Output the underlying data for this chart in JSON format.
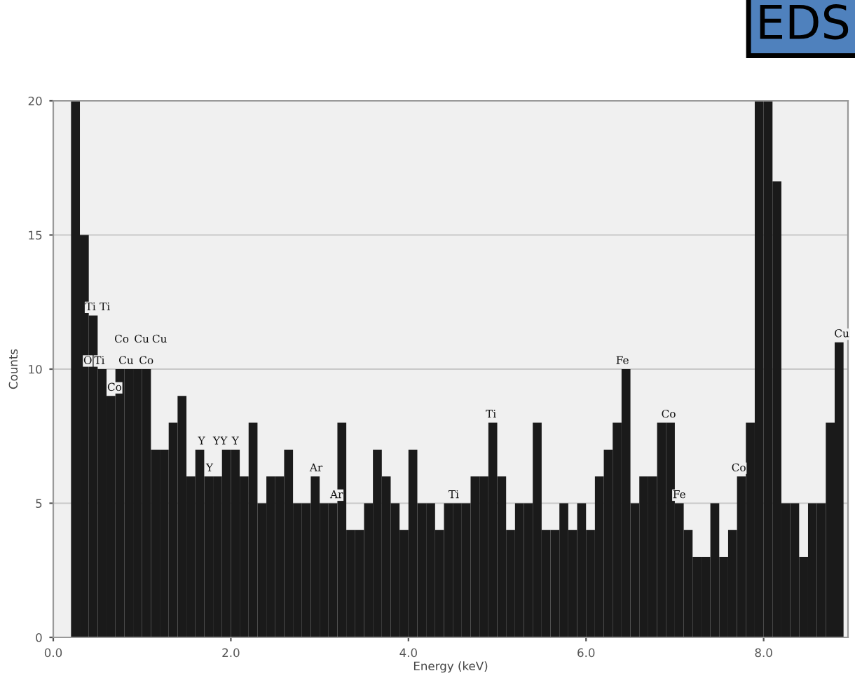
{
  "chart_data": {
    "type": "histogram",
    "xlabel": "Energy (keV)",
    "ylabel": "Counts",
    "bins": [
      0.2,
      0.3,
      0.4,
      0.5,
      0.6,
      0.7,
      0.8,
      0.9,
      1.0,
      1.1,
      1.2,
      1.3,
      1.4,
      1.5,
      1.6,
      1.7,
      1.8,
      1.9,
      2.0,
      2.1,
      2.2,
      2.3,
      2.4,
      2.5,
      2.6,
      2.7,
      2.8,
      2.9,
      3.0,
      3.1,
      3.2,
      3.3,
      3.4,
      3.5,
      3.6,
      3.7,
      3.8,
      3.9,
      4.0,
      4.1,
      4.2,
      4.3,
      4.4,
      4.5,
      4.6,
      4.7,
      4.8,
      4.9,
      5.0,
      5.1,
      5.2,
      5.3,
      5.4,
      5.5,
      5.6,
      5.7,
      5.8,
      5.9,
      6.0,
      6.1,
      6.2,
      6.3,
      6.4,
      6.5,
      6.6,
      6.7,
      6.8,
      6.9,
      7.0,
      7.1,
      7.2,
      7.3,
      7.4,
      7.5,
      7.6,
      7.7,
      7.8,
      7.9,
      8.0,
      8.1,
      8.2,
      8.3,
      8.4,
      8.5,
      8.6,
      8.7,
      8.8,
      8.9
    ],
    "values": [
      20,
      15,
      12,
      10,
      9,
      10,
      10,
      10,
      10,
      7,
      7,
      8,
      9,
      6,
      7,
      6,
      6,
      7,
      7,
      6,
      8,
      5,
      6,
      6,
      7,
      5,
      5,
      6,
      5,
      5,
      8,
      4,
      4,
      5,
      7,
      6,
      5,
      4,
      7,
      5,
      5,
      4,
      5,
      5,
      5,
      6,
      6,
      8,
      6,
      4,
      5,
      5,
      8,
      4,
      4,
      5,
      4,
      5,
      4,
      6,
      7,
      8,
      10,
      5,
      6,
      6,
      8,
      8,
      5,
      4,
      3,
      3,
      5,
      3,
      4,
      6,
      8,
      20,
      20,
      17,
      5,
      5,
      3,
      5,
      5,
      8,
      11
    ],
    "color": "#1a1a1a",
    "xlim": [
      0,
      8.95
    ],
    "xticks": [
      {
        "value": 0,
        "label": "0.0"
      },
      {
        "value": 2,
        "label": "2.0"
      },
      {
        "value": 4,
        "label": "4.0"
      },
      {
        "value": 6,
        "label": "6.0"
      },
      {
        "value": 8,
        "label": "8.0"
      }
    ],
    "ylim": [
      0,
      20
    ],
    "yticks": [
      0,
      5,
      10,
      15,
      20
    ],
    "grid": "y",
    "annotations": [
      "EDS",
      {
        "text": "Ti",
        "x": 0.42,
        "y": 12
      },
      {
        "text": "Ti",
        "x": 0.45,
        "y": 12
      },
      {
        "text": "Cu",
        "x": 0.82,
        "y": 10
      },
      {
        "text": "Ti",
        "x": 0.52,
        "y": 10
      },
      {
        "text": "O",
        "x": 0.52,
        "y": 10
      },
      {
        "text": "Co",
        "x": 0.77,
        "y": 10
      },
      {
        "text": "Co",
        "x": 0.85,
        "y": 10
      },
      {
        "text": "Cu",
        "x": 0.93,
        "y": 10
      },
      {
        "text": "Cu",
        "x": 1.0,
        "y": 10
      },
      {
        "text": "Co",
        "x": 0.69,
        "y": 9
      },
      {
        "text": "Y",
        "x": 1.67,
        "y": 7
      },
      {
        "text": "Y",
        "x": 1.92,
        "y": 7
      },
      {
        "text": "Y",
        "x": 1.76,
        "y": 6
      },
      {
        "text": "Y",
        "x": 2.05,
        "y": 7
      },
      {
        "text": "Y",
        "x": 1.97,
        "y": 7
      },
      {
        "text": "Ar",
        "x": 2.96,
        "y": 6.0
      },
      {
        "text": "Ar",
        "x": 3.19,
        "y": 5.0
      },
      {
        "text": "Ti",
        "x": 4.51,
        "y": 5.0
      },
      {
        "text": "Ti",
        "x": 4.93,
        "y": 8.0
      },
      {
        "text": "Fe",
        "x": 6.41,
        "y": 10.0
      },
      {
        "text": "Co",
        "x": 6.93,
        "y": 8.0
      },
      {
        "text": "Fe",
        "x": 7.05,
        "y": 5
      },
      {
        "text": "Co",
        "x": 7.72,
        "y": 6
      },
      {
        "text": "Cu",
        "x": 8.88,
        "y": 11.0
      }
    ]
  }
}
